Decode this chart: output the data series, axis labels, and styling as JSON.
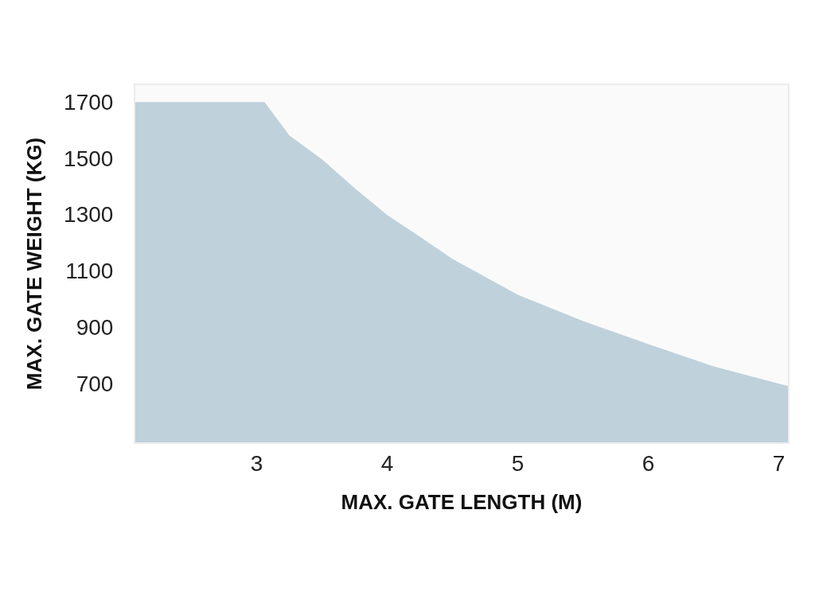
{
  "chart_data": {
    "type": "area",
    "xlabel": "MAX. GATE LENGTH (M)",
    "ylabel": "MAX. GATE WEIGHT (KG)",
    "x": [
      2.07,
      3.06,
      3.25,
      3.5,
      3.75,
      4,
      4.25,
      4.5,
      5,
      5.5,
      6,
      6.5,
      7.07
    ],
    "series": [
      {
        "color": "#bfd1db",
        "values": [
          1700,
          1700,
          1581,
          1496,
          1394,
          1298,
          1221,
          1142,
          1015,
          921,
          839,
          760,
          690
        ]
      }
    ],
    "xlim": [
      2.07,
      7.07
    ],
    "ylim": [
      490,
      1760
    ],
    "xticks": [
      3,
      4,
      5,
      6,
      7
    ],
    "yticks": [
      700,
      900,
      1100,
      1300,
      1500,
      1700
    ],
    "grid": false
  }
}
